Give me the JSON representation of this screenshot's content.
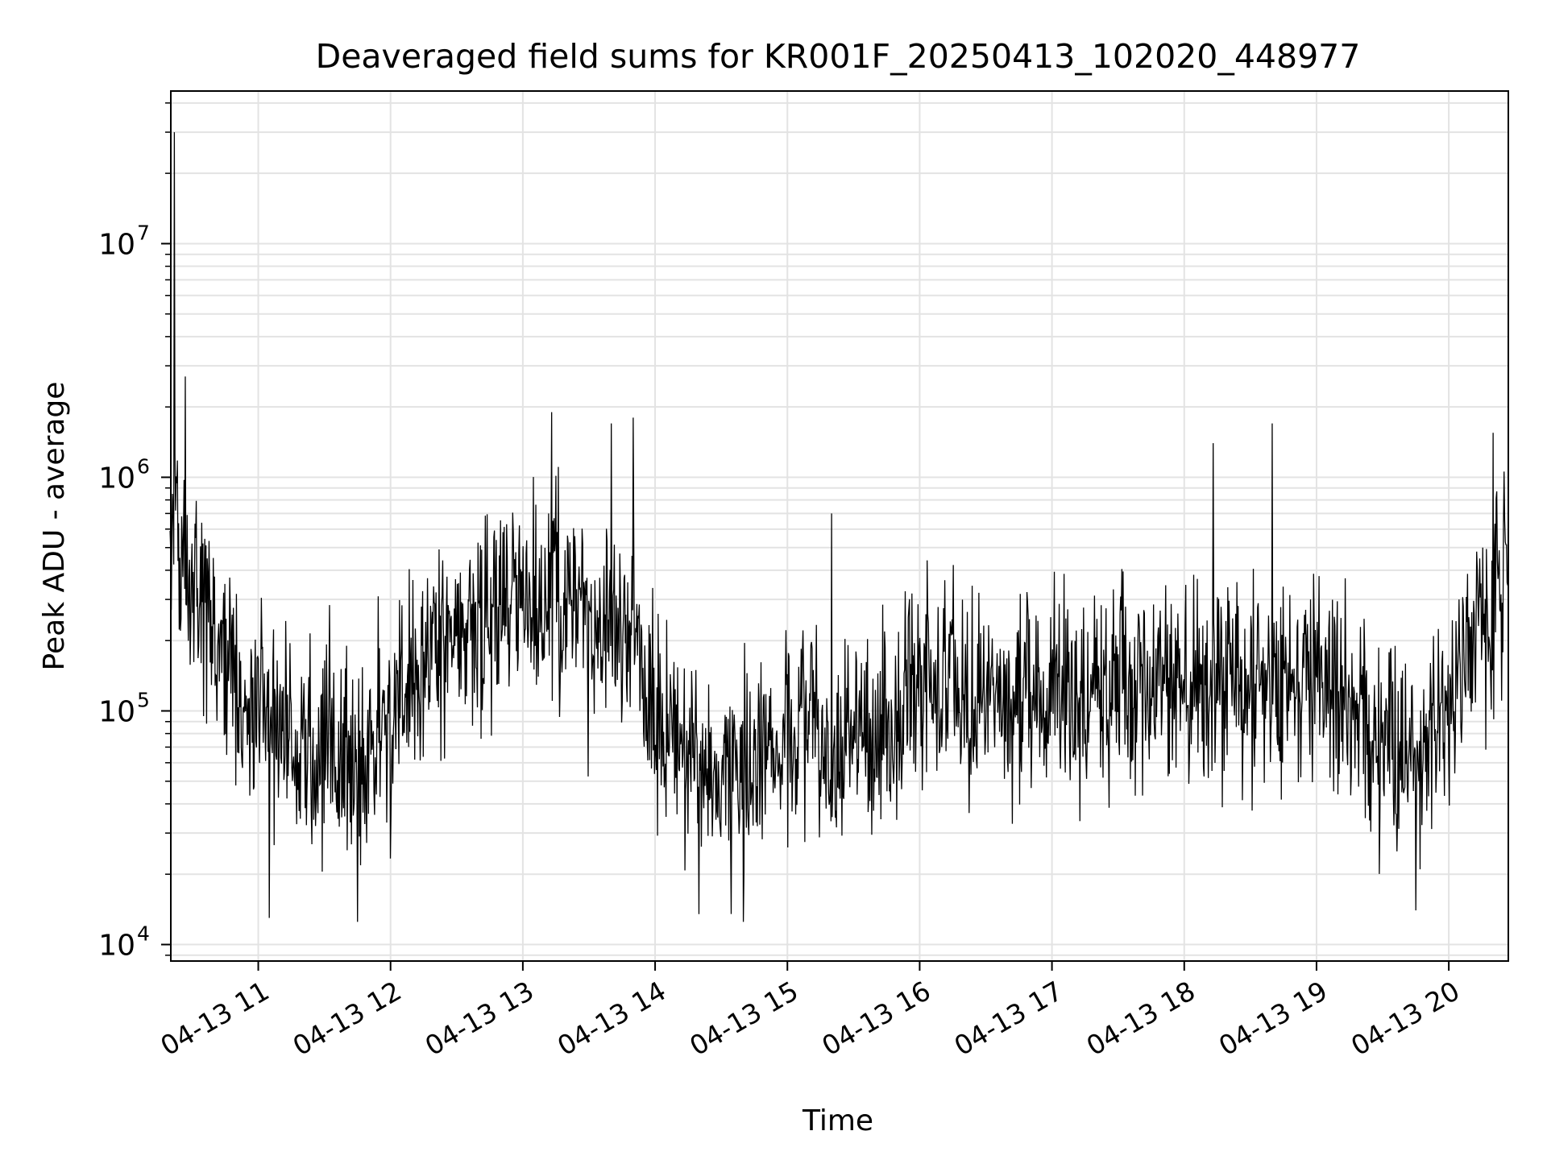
{
  "chart_data": {
    "type": "line",
    "title": "Deaveraged field sums for KR001F_20250413_102020_448977",
    "xlabel": "Time",
    "ylabel": "Peak ADU - average",
    "yscale": "log",
    "ylim": [
      8500,
      45000000
    ],
    "xlim": [
      "2025-04-13 10:20:20",
      "2025-04-13 20:27:00"
    ],
    "grid": true,
    "line_color": "#000000",
    "x_ticks": [
      {
        "value": "2025-04-13 11:00",
        "label": "04-13 11"
      },
      {
        "value": "2025-04-13 12:00",
        "label": "04-13 12"
      },
      {
        "value": "2025-04-13 13:00",
        "label": "04-13 13"
      },
      {
        "value": "2025-04-13 14:00",
        "label": "04-13 14"
      },
      {
        "value": "2025-04-13 15:00",
        "label": "04-13 15"
      },
      {
        "value": "2025-04-13 16:00",
        "label": "04-13 16"
      },
      {
        "value": "2025-04-13 17:00",
        "label": "04-13 17"
      },
      {
        "value": "2025-04-13 18:00",
        "label": "04-13 18"
      },
      {
        "value": "2025-04-13 19:00",
        "label": "04-13 19"
      },
      {
        "value": "2025-04-13 20:00",
        "label": "04-13 20"
      }
    ],
    "y_ticks": [
      {
        "value": 10000,
        "base": "10",
        "exp": "4"
      },
      {
        "value": 100000,
        "base": "10",
        "exp": "5"
      },
      {
        "value": 1000000,
        "base": "10",
        "exp": "6"
      },
      {
        "value": 10000000,
        "base": "10",
        "exp": "7"
      }
    ],
    "series": [
      {
        "x": [
          "2025-04-13 10:20",
          "2025-04-13 10:23",
          "2025-04-13 10:26",
          "2025-04-13 10:30",
          "2025-04-13 10:35",
          "2025-04-13 10:40",
          "2025-04-13 10:45",
          "2025-04-13 10:50",
          "2025-04-13 10:55",
          "2025-04-13 11:00",
          "2025-04-13 11:10",
          "2025-04-13 11:20",
          "2025-04-13 11:30",
          "2025-04-13 11:40",
          "2025-04-13 11:50",
          "2025-04-13 12:00",
          "2025-04-13 12:10",
          "2025-04-13 12:20",
          "2025-04-13 12:30",
          "2025-04-13 12:40",
          "2025-04-13 12:50",
          "2025-04-13 13:00",
          "2025-04-13 13:10",
          "2025-04-13 13:20",
          "2025-04-13 13:30",
          "2025-04-13 13:40",
          "2025-04-13 13:50",
          "2025-04-13 13:56",
          "2025-04-13 14:05",
          "2025-04-13 14:15",
          "2025-04-13 14:25",
          "2025-04-13 14:35",
          "2025-04-13 14:45",
          "2025-04-13 14:55",
          "2025-04-13 15:05",
          "2025-04-13 15:15",
          "2025-04-13 15:25",
          "2025-04-13 15:35",
          "2025-04-13 15:45",
          "2025-04-13 15:55",
          "2025-04-13 16:10",
          "2025-04-13 16:30",
          "2025-04-13 16:50",
          "2025-04-13 17:10",
          "2025-04-13 17:30",
          "2025-04-13 17:50",
          "2025-04-13 18:10",
          "2025-04-13 18:30",
          "2025-04-13 18:50",
          "2025-04-13 19:00",
          "2025-04-13 19:10",
          "2025-04-13 19:20",
          "2025-04-13 19:30",
          "2025-04-13 19:40",
          "2025-04-13 19:50",
          "2025-04-13 20:00",
          "2025-04-13 20:10",
          "2025-04-13 20:20",
          "2025-04-13 20:27"
        ],
        "y": [
          700000,
          600000,
          450000,
          350000,
          280000,
          220000,
          160000,
          120000,
          100000,
          90000,
          80000,
          70000,
          60000,
          55000,
          60000,
          90000,
          160000,
          190000,
          210000,
          230000,
          280000,
          360000,
          320000,
          300000,
          260000,
          240000,
          220000,
          100000,
          75000,
          70000,
          55000,
          50000,
          60000,
          80000,
          85000,
          75000,
          70000,
          80000,
          90000,
          110000,
          120000,
          120000,
          125000,
          125000,
          125000,
          125000,
          130000,
          125000,
          120000,
          140000,
          130000,
          90000,
          70000,
          60000,
          70000,
          120000,
          180000,
          300000,
          500000
        ],
        "spikes": [
          {
            "x": "2025-04-13 10:22",
            "y": 30000000
          },
          {
            "x": "2025-04-13 10:27",
            "y": 2700000
          },
          {
            "x": "2025-04-13 13:13",
            "y": 1900000
          },
          {
            "x": "2025-04-13 13:40",
            "y": 1700000
          },
          {
            "x": "2025-04-13 13:50",
            "y": 1800000
          },
          {
            "x": "2025-04-13 15:20",
            "y": 700000
          },
          {
            "x": "2025-04-13 18:13",
            "y": 1400000
          },
          {
            "x": "2025-04-13 18:40",
            "y": 1700000
          },
          {
            "x": "2025-04-13 20:20",
            "y": 1550000
          },
          {
            "x": "2025-04-13 11:05",
            "y": 13000
          },
          {
            "x": "2025-04-13 11:45",
            "y": 12500
          },
          {
            "x": "2025-04-13 14:20",
            "y": 13500
          },
          {
            "x": "2025-04-13 14:40",
            "y": 12500
          },
          {
            "x": "2025-04-13 19:45",
            "y": 14000
          }
        ]
      }
    ]
  }
}
